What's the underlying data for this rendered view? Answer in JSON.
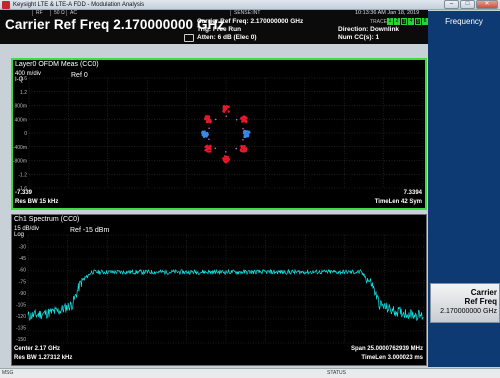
{
  "window": {
    "title": "Keysight LTE & LTE-A FDD - Modulation Analysis",
    "buttons": [
      "–",
      "□",
      "✕"
    ]
  },
  "settings_bar": {
    "cells": [
      "RF",
      "50 Ω",
      "AC",
      "SENSE:INT"
    ],
    "title": "Carrier Ref Freq 2.170000000 GHz",
    "carrier_ref": "Carrier Ref Freq: 2.170000000 GHz",
    "trig": "Trig: Free Run",
    "atten": "Atten: 6 dB (Elec 0)",
    "timestamp": "10:13:36 AM Jan 18, 2019",
    "trace_label": "TRACE",
    "trace_boxes": [
      "1",
      "2",
      "3",
      "4",
      "5",
      "6"
    ],
    "direction": "Direction: Downlink",
    "num_cc": "Num CC(s): 1"
  },
  "window1": {
    "title": "Layer0 OFDM Meas (CC0)",
    "scale": "400 m/div",
    "axis_label": "I-Q",
    "ref_label": "Ref 0",
    "y_ticks": [
      "1.6",
      "1.2",
      "800m",
      "400m",
      "0",
      "-400m",
      "-800m",
      "-1.2",
      "-1.6"
    ],
    "x_left": "-7.339",
    "x_right": "7.3394",
    "res_bw": "Res BW 15 kHz",
    "time_len": "TimeLen 42  Sym",
    "chart_data": {
      "type": "scatter",
      "xlim": [
        -1.8,
        1.8
      ],
      "ylim": [
        -1.8,
        1.8
      ],
      "clusters": [
        {
          "x": 0.0,
          "y": 1.2,
          "color": "#e8182a"
        },
        {
          "x": 0.85,
          "y": 0.7,
          "color": "#e8182a"
        },
        {
          "x": 1.0,
          "y": 0.0,
          "color": "#3a8be8"
        },
        {
          "x": 0.85,
          "y": -0.7,
          "color": "#e8182a"
        },
        {
          "x": 0.0,
          "y": -1.2,
          "color": "#e8182a"
        },
        {
          "x": -0.85,
          "y": -0.7,
          "color": "#e8182a"
        },
        {
          "x": -1.0,
          "y": 0.0,
          "color": "#3a8be8"
        },
        {
          "x": -0.85,
          "y": 0.7,
          "color": "#e8182a"
        }
      ]
    }
  },
  "window2": {
    "title": "Ch1 Spectrum (CC0)",
    "scale": "15 dB/div",
    "scale_type": "Log",
    "ref_label": "Ref -15 dBm",
    "y_ticks": [
      "-30",
      "-45",
      "-60",
      "-75",
      "-90",
      "-105",
      "-120",
      "-135",
      "-150"
    ],
    "center": "Center 2.17 GHz",
    "res_bw": "Res BW 1.27312 kHz",
    "span": "Span 25.0000762939 MHz",
    "time_len": "TimeLen 3.000023 ms",
    "chart_data": {
      "type": "line",
      "xlim": [
        2157.5,
        2182.5
      ],
      "ylim": [
        -155,
        -15
      ],
      "series": [
        {
          "color": "#12e6e6",
          "x": [
            2157.5,
            2158.5,
            2159.5,
            2160.3,
            2160.8,
            2161.5,
            2170.0,
            2178.5,
            2179.2,
            2179.7,
            2180.5,
            2181.5,
            2182.5
          ],
          "y": [
            -120,
            -117,
            -113,
            -105,
            -78,
            -63,
            -63,
            -63,
            -78,
            -105,
            -113,
            -117,
            -120
          ]
        }
      ]
    }
  },
  "panel": {
    "title": "Frequency",
    "softkey": {
      "line1": "Carrier",
      "line2": "Ref Freq",
      "value": "2.170000000 GHz"
    }
  },
  "status_bar": {
    "msg": "MSG",
    "status": "STATUS"
  }
}
